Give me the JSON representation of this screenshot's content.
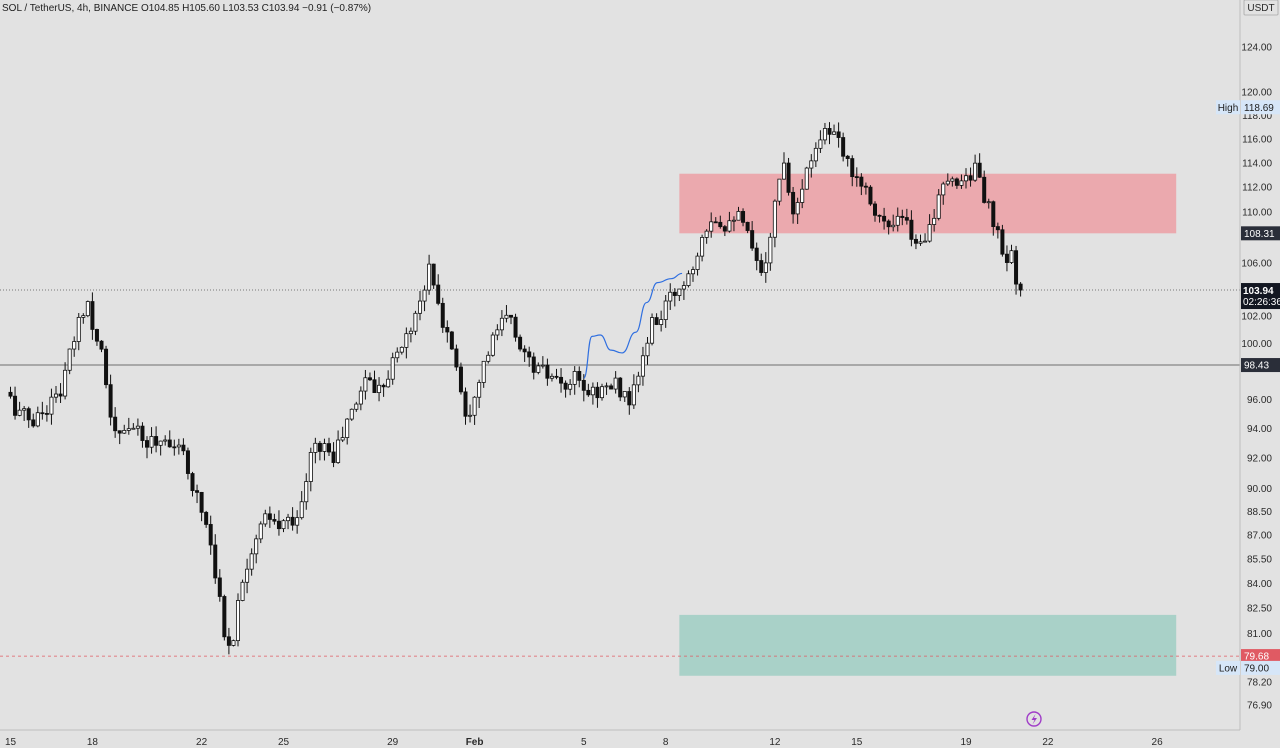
{
  "header": {
    "legend": "SOL / TetherUS, 4h, BINANCE  O104.85  H105.60  L103.53  C103.94  −0.91 (−0.87%)",
    "currency": "USDT"
  },
  "colors": {
    "background": "#e2e2e2",
    "candle_up": "#ffffff",
    "candle_down": "#111111",
    "wick": "#111111",
    "supply_zone": "#eba9ae",
    "demand_zone": "#a9d1c8",
    "projection_line": "#2f6fe0",
    "last_price_tag": "#131722",
    "low_line": "#e05a63",
    "high_low_label_bg": "#d6e6f8"
  },
  "chart_data": {
    "type": "candlestick",
    "symbol": "SOL / TetherUS",
    "interval": "4h",
    "exchange": "BINANCE",
    "ohlc_last": {
      "open": 104.85,
      "high": 105.6,
      "low": 103.53,
      "close": 103.94,
      "change": -0.91,
      "change_pct": -0.87
    },
    "y_scale": "log",
    "ylim": [
      75.9,
      127.5
    ],
    "y_ticks": [
      "124.00",
      "120.00",
      "118.00",
      "116.00",
      "114.00",
      "112.00",
      "110.00",
      "106.00",
      "102.00",
      "100.00",
      "96.00",
      "94.00",
      "92.00",
      "90.00",
      "88.50",
      "87.00",
      "85.50",
      "84.00",
      "82.50",
      "81.00",
      "78.20",
      "76.90"
    ],
    "x_ticks": [
      "15",
      "18",
      "22",
      "25",
      "29",
      "Feb",
      "5",
      "8",
      "12",
      "15",
      "19",
      "22",
      "26"
    ],
    "x_tick_days": [
      15,
      18,
      22,
      25,
      29,
      32,
      36,
      39,
      43,
      46,
      50,
      53,
      57
    ],
    "candles_start_day": 15.0,
    "candles_per_day": 6,
    "price_anchors": [
      [
        15.0,
        96.5
      ],
      [
        15.4,
        95.2
      ],
      [
        16.0,
        94.5
      ],
      [
        16.5,
        95.5
      ],
      [
        17.0,
        96.6
      ],
      [
        17.4,
        99.5
      ],
      [
        17.8,
        102.5
      ],
      [
        18.0,
        103.0
      ],
      [
        18.3,
        100.5
      ],
      [
        18.6,
        99.0
      ],
      [
        18.8,
        94.5
      ],
      [
        19.2,
        93.2
      ],
      [
        19.6,
        94.5
      ],
      [
        20.0,
        93.0
      ],
      [
        20.5,
        93.2
      ],
      [
        21.0,
        93.3
      ],
      [
        21.5,
        92.0
      ],
      [
        22.0,
        89.5
      ],
      [
        22.4,
        87.5
      ],
      [
        22.7,
        84.5
      ],
      [
        23.0,
        80.8
      ],
      [
        23.3,
        80.5
      ],
      [
        23.6,
        84.0
      ],
      [
        24.0,
        86.2
      ],
      [
        24.5,
        88.0
      ],
      [
        25.0,
        87.5
      ],
      [
        25.4,
        88.0
      ],
      [
        25.8,
        88.5
      ],
      [
        26.2,
        92.5
      ],
      [
        26.6,
        93.0
      ],
      [
        27.0,
        92.0
      ],
      [
        27.4,
        94.0
      ],
      [
        27.8,
        95.6
      ],
      [
        28.2,
        97.8
      ],
      [
        28.6,
        96.5
      ],
      [
        29.0,
        98.0
      ],
      [
        29.4,
        99.5
      ],
      [
        29.8,
        101.0
      ],
      [
        30.2,
        103.5
      ],
      [
        30.5,
        105.5
      ],
      [
        30.8,
        103.0
      ],
      [
        31.0,
        101.5
      ],
      [
        31.4,
        99.5
      ],
      [
        31.7,
        96.5
      ],
      [
        31.9,
        94.5
      ],
      [
        32.2,
        97.0
      ],
      [
        32.6,
        99.0
      ],
      [
        33.0,
        101.0
      ],
      [
        33.4,
        102.0
      ],
      [
        33.8,
        100.0
      ],
      [
        34.2,
        98.5
      ],
      [
        34.6,
        98.0
      ],
      [
        35.0,
        97.5
      ],
      [
        35.4,
        96.5
      ],
      [
        35.8,
        97.5
      ],
      [
        36.2,
        96.5
      ],
      [
        36.6,
        96.6
      ],
      [
        37.0,
        96.8
      ],
      [
        37.4,
        97.0
      ],
      [
        37.8,
        95.9
      ],
      [
        38.0,
        96.5
      ],
      [
        38.4,
        99.5
      ],
      [
        38.7,
        101.5
      ],
      [
        39.0,
        102.0
      ],
      [
        39.4,
        103.5
      ],
      [
        39.8,
        104.5
      ],
      [
        40.2,
        106.0
      ],
      [
        40.5,
        108.5
      ],
      [
        40.9,
        109.8
      ],
      [
        41.3,
        109.0
      ],
      [
        41.7,
        110.0
      ],
      [
        42.1,
        108.5
      ],
      [
        42.4,
        106.5
      ],
      [
        42.6,
        105.0
      ],
      [
        42.9,
        107.0
      ],
      [
        43.2,
        111.0
      ],
      [
        43.5,
        114.5
      ],
      [
        43.8,
        110.0
      ],
      [
        44.1,
        112.0
      ],
      [
        44.4,
        113.5
      ],
      [
        44.7,
        116.0
      ],
      [
        45.0,
        116.8
      ],
      [
        45.4,
        116.0
      ],
      [
        45.8,
        114.0
      ],
      [
        46.2,
        113.0
      ],
      [
        46.6,
        111.5
      ],
      [
        47.0,
        109.5
      ],
      [
        47.4,
        108.5
      ],
      [
        47.8,
        109.5
      ],
      [
        48.1,
        108.5
      ],
      [
        48.4,
        107.0
      ],
      [
        48.7,
        108.5
      ],
      [
        49.0,
        110.0
      ],
      [
        49.4,
        112.0
      ],
      [
        49.8,
        112.5
      ],
      [
        50.2,
        113.0
      ],
      [
        50.5,
        113.5
      ],
      [
        50.8,
        111.5
      ],
      [
        51.1,
        109.5
      ],
      [
        51.4,
        107.5
      ],
      [
        51.6,
        105.5
      ],
      [
        51.8,
        107.0
      ],
      [
        52.0,
        105.0
      ],
      [
        52.1,
        103.94
      ]
    ],
    "supply_zone": {
      "from_day": 39.5,
      "to_day": 57.7,
      "low": 108.31,
      "high": 113.1
    },
    "demand_zone": {
      "from_day": 39.5,
      "to_day": 57.7,
      "low": 78.55,
      "high": 82.1
    },
    "projection_path": [
      [
        36.0,
        97.5
      ],
      [
        36.3,
        100.5
      ],
      [
        36.6,
        100.6
      ],
      [
        37.0,
        99.5
      ],
      [
        37.4,
        99.3
      ],
      [
        37.9,
        100.8
      ],
      [
        38.3,
        103.0
      ],
      [
        38.7,
        104.5
      ],
      [
        39.2,
        104.8
      ],
      [
        39.6,
        105.2
      ]
    ],
    "levels": [
      {
        "price": 103.94,
        "label": "103.94",
        "sub": "02:26:36",
        "kind": "last"
      },
      {
        "price": 98.43,
        "label": "98.43",
        "kind": "level"
      },
      {
        "price": 108.31,
        "label": "108.31",
        "kind": "zone-top"
      },
      {
        "price": 79.68,
        "label": "79.68",
        "kind": "low-line"
      }
    ],
    "high_marker": {
      "label": "High",
      "value": "118.69",
      "price": 118.69
    },
    "low_marker": {
      "label": "Low",
      "value": "79.00",
      "price": 79.0
    }
  }
}
